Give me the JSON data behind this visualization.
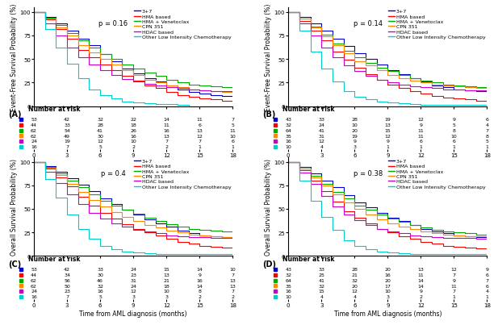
{
  "panels": [
    {
      "label": "A",
      "ylabel": "Event-Free Survival Probability (%)",
      "pvalue": "p = 0.16"
    },
    {
      "label": "B",
      "ylabel": "Event-Free Survival Probability (%)",
      "pvalue": "p = 0.14"
    },
    {
      "label": "C",
      "ylabel": "Overall Survival Probability (%)",
      "pvalue": "p = 0.4"
    },
    {
      "label": "D",
      "ylabel": "Overall Survival Probability (%)",
      "pvalue": "p = 0.38"
    }
  ],
  "legend_labels": [
    "3+7",
    "HMA based",
    "HMA + Venetoclax",
    "CPN 351",
    "HDAC based",
    "Other Low Intensity Chemotherapy"
  ],
  "line_colors": [
    "#0000cc",
    "#ff0000",
    "#00aa00",
    "#ff8800",
    "#cc00cc",
    "#00cccc"
  ],
  "xlabel": "Time from AML diagnosis (months)",
  "xmax": 18,
  "xticks": [
    0,
    3,
    6,
    9,
    12,
    15,
    18
  ],
  "curves_A": [
    {
      "x": [
        0,
        1,
        2,
        3,
        4,
        5,
        6,
        7,
        8,
        9,
        10,
        11,
        12,
        13,
        14,
        15,
        16,
        17,
        18
      ],
      "y": [
        100,
        95,
        88,
        80,
        72,
        65,
        55,
        48,
        40,
        35,
        30,
        26,
        22,
        18,
        15,
        13,
        12,
        11,
        10
      ]
    },
    {
      "x": [
        0,
        1,
        2,
        3,
        4,
        5,
        6,
        7,
        8,
        9,
        10,
        11,
        12,
        13,
        14,
        15,
        16,
        17,
        18
      ],
      "y": [
        100,
        92,
        82,
        72,
        60,
        52,
        44,
        38,
        32,
        27,
        22,
        19,
        15,
        12,
        10,
        8,
        7,
        6,
        5
      ]
    },
    {
      "x": [
        0,
        1,
        2,
        3,
        4,
        5,
        6,
        7,
        8,
        9,
        10,
        11,
        12,
        13,
        14,
        15,
        16,
        17,
        18
      ],
      "y": [
        100,
        94,
        86,
        78,
        70,
        62,
        55,
        50,
        44,
        40,
        36,
        32,
        28,
        25,
        23,
        22,
        21,
        20,
        20
      ]
    },
    {
      "x": [
        0,
        1,
        2,
        3,
        4,
        5,
        6,
        7,
        8,
        9,
        10,
        11,
        12,
        13,
        14,
        15,
        16,
        17,
        18
      ],
      "y": [
        100,
        93,
        84,
        75,
        65,
        57,
        50,
        44,
        38,
        33,
        28,
        25,
        22,
        20,
        18,
        17,
        16,
        15,
        14
      ]
    },
    {
      "x": [
        0,
        1,
        2,
        3,
        4,
        5,
        6,
        7,
        8,
        9,
        10,
        11,
        12,
        13,
        14,
        15,
        16,
        17,
        18
      ],
      "y": [
        100,
        88,
        75,
        62,
        52,
        44,
        38,
        33,
        29,
        26,
        24,
        22,
        20,
        19,
        18,
        17,
        16,
        16,
        16
      ]
    },
    {
      "x": [
        0,
        1,
        2,
        3,
        4,
        5,
        6,
        7,
        8,
        9,
        10,
        11,
        12,
        13,
        14
      ],
      "y": [
        100,
        82,
        62,
        45,
        30,
        18,
        12,
        8,
        5,
        4,
        3,
        2,
        2,
        1,
        0
      ]
    }
  ],
  "curves_B": [
    {
      "x": [
        0,
        1,
        2,
        3,
        4,
        5,
        6,
        7,
        8,
        9,
        10,
        11,
        12,
        13,
        14,
        15,
        16,
        17,
        18
      ],
      "y": [
        100,
        95,
        88,
        80,
        72,
        64,
        56,
        50,
        44,
        38,
        34,
        30,
        26,
        22,
        20,
        18,
        17,
        16,
        15
      ]
    },
    {
      "x": [
        0,
        1,
        2,
        3,
        4,
        5,
        6,
        7,
        8,
        9,
        10,
        11,
        12,
        13,
        14,
        15,
        16,
        17,
        18
      ],
      "y": [
        100,
        91,
        80,
        70,
        58,
        49,
        41,
        34,
        28,
        23,
        19,
        16,
        13,
        11,
        9,
        8,
        7,
        6,
        5
      ]
    },
    {
      "x": [
        0,
        1,
        2,
        3,
        4,
        5,
        6,
        7,
        8,
        9,
        10,
        11,
        12,
        13,
        14,
        15,
        16,
        17,
        18
      ],
      "y": [
        100,
        93,
        85,
        76,
        67,
        59,
        52,
        46,
        41,
        37,
        33,
        30,
        27,
        25,
        23,
        22,
        21,
        20,
        20
      ]
    },
    {
      "x": [
        0,
        1,
        2,
        3,
        4,
        5,
        6,
        7,
        8,
        9,
        10,
        11,
        12,
        13,
        14,
        15,
        16,
        17,
        18
      ],
      "y": [
        100,
        93,
        84,
        74,
        65,
        56,
        48,
        43,
        38,
        33,
        30,
        27,
        25,
        23,
        22,
        21,
        20,
        19,
        19
      ]
    },
    {
      "x": [
        0,
        1,
        2,
        3,
        4,
        5,
        6,
        7,
        8,
        9,
        10,
        11,
        12,
        13,
        14,
        15,
        16,
        17,
        18
      ],
      "y": [
        100,
        88,
        75,
        62,
        52,
        43,
        37,
        32,
        28,
        25,
        23,
        21,
        20,
        19,
        18,
        18,
        17,
        17,
        17
      ]
    },
    {
      "x": [
        0,
        1,
        2,
        3,
        4,
        5,
        6,
        7,
        8,
        9,
        10,
        11,
        12,
        13,
        14,
        15,
        16,
        17,
        18
      ],
      "y": [
        100,
        80,
        58,
        40,
        26,
        16,
        10,
        7,
        5,
        4,
        3,
        2,
        1,
        1,
        1,
        1,
        1,
        1,
        1
      ]
    }
  ],
  "curves_C": [
    {
      "x": [
        0,
        1,
        2,
        3,
        4,
        5,
        6,
        7,
        8,
        9,
        10,
        11,
        12,
        13,
        14,
        15,
        16,
        17,
        18
      ],
      "y": [
        100,
        96,
        90,
        83,
        76,
        69,
        61,
        55,
        49,
        44,
        39,
        35,
        31,
        27,
        24,
        22,
        21,
        20,
        19
      ]
    },
    {
      "x": [
        0,
        1,
        2,
        3,
        4,
        5,
        6,
        7,
        8,
        9,
        10,
        11,
        12,
        13,
        14,
        15,
        16,
        17,
        18
      ],
      "y": [
        100,
        93,
        84,
        74,
        63,
        54,
        46,
        40,
        34,
        29,
        25,
        22,
        18,
        15,
        13,
        11,
        10,
        9,
        8
      ]
    },
    {
      "x": [
        0,
        1,
        2,
        3,
        4,
        5,
        6,
        7,
        8,
        9,
        10,
        11,
        12,
        13,
        14,
        15,
        16,
        17,
        18
      ],
      "y": [
        100,
        95,
        88,
        80,
        73,
        66,
        59,
        54,
        49,
        45,
        41,
        37,
        34,
        31,
        29,
        28,
        27,
        26,
        26
      ]
    },
    {
      "x": [
        0,
        1,
        2,
        3,
        4,
        5,
        6,
        7,
        8,
        9,
        10,
        11,
        12,
        13,
        14,
        15,
        16,
        17,
        18
      ],
      "y": [
        100,
        94,
        86,
        77,
        68,
        60,
        53,
        47,
        42,
        37,
        33,
        30,
        27,
        25,
        23,
        22,
        21,
        20,
        20
      ]
    },
    {
      "x": [
        0,
        1,
        2,
        3,
        4,
        5,
        6,
        7,
        8,
        9,
        10,
        11,
        12,
        13,
        14,
        15,
        16,
        17,
        18
      ],
      "y": [
        100,
        90,
        78,
        66,
        55,
        46,
        40,
        35,
        31,
        28,
        26,
        24,
        22,
        21,
        20,
        20,
        19,
        19,
        19
      ]
    },
    {
      "x": [
        0,
        1,
        2,
        3,
        4,
        5,
        6,
        7,
        8,
        9,
        10,
        11,
        12,
        13,
        14,
        15,
        16,
        17,
        18
      ],
      "y": [
        100,
        82,
        62,
        44,
        29,
        18,
        11,
        7,
        5,
        4,
        3,
        2,
        2,
        2,
        2,
        2,
        2,
        2,
        2
      ]
    }
  ],
  "curves_D": [
    {
      "x": [
        0,
        1,
        2,
        3,
        4,
        5,
        6,
        7,
        8,
        9,
        10,
        11,
        12,
        13,
        14,
        15,
        16,
        17,
        18
      ],
      "y": [
        100,
        95,
        88,
        80,
        73,
        65,
        57,
        52,
        46,
        41,
        37,
        33,
        29,
        26,
        24,
        22,
        21,
        20,
        19
      ]
    },
    {
      "x": [
        0,
        1,
        2,
        3,
        4,
        5,
        6,
        7,
        8,
        9,
        10,
        11,
        12,
        13,
        14,
        15,
        16,
        17,
        18
      ],
      "y": [
        100,
        91,
        80,
        69,
        58,
        48,
        41,
        35,
        29,
        25,
        21,
        18,
        15,
        13,
        11,
        10,
        9,
        8,
        8
      ]
    },
    {
      "x": [
        0,
        1,
        2,
        3,
        4,
        5,
        6,
        7,
        8,
        9,
        10,
        11,
        12,
        13,
        14,
        15,
        16,
        17,
        18
      ],
      "y": [
        100,
        93,
        85,
        77,
        68,
        61,
        54,
        49,
        44,
        40,
        36,
        33,
        30,
        28,
        26,
        25,
        24,
        23,
        23
      ]
    },
    {
      "x": [
        0,
        1,
        2,
        3,
        4,
        5,
        6,
        7,
        8,
        9,
        10,
        11,
        12,
        13,
        14,
        15,
        16,
        17,
        18
      ],
      "y": [
        100,
        93,
        84,
        75,
        66,
        57,
        50,
        44,
        39,
        35,
        31,
        29,
        26,
        24,
        23,
        22,
        21,
        21,
        21
      ]
    },
    {
      "x": [
        0,
        1,
        2,
        3,
        4,
        5,
        6,
        7,
        8,
        9,
        10,
        11,
        12,
        13,
        14,
        15,
        16,
        17,
        18
      ],
      "y": [
        100,
        89,
        77,
        64,
        53,
        44,
        38,
        33,
        29,
        26,
        24,
        22,
        21,
        20,
        19,
        19,
        19,
        18,
        18
      ]
    },
    {
      "x": [
        0,
        1,
        2,
        3,
        4,
        5,
        6,
        7,
        8,
        9,
        10,
        11,
        12,
        13,
        14,
        15,
        16,
        17,
        18
      ],
      "y": [
        100,
        80,
        59,
        42,
        28,
        17,
        11,
        7,
        5,
        4,
        3,
        2,
        2,
        2,
        2,
        2,
        2,
        2,
        2
      ]
    }
  ],
  "risk_A": {
    "t0": [
      53,
      44,
      62,
      62,
      24,
      16
    ],
    "t3": [
      42,
      33,
      54,
      49,
      19,
      7
    ],
    "t6": [
      32,
      28,
      41,
      30,
      12,
      5
    ],
    "t9": [
      22,
      18,
      26,
      16,
      10,
      2
    ],
    "t12": [
      14,
      11,
      16,
      13,
      7,
      2
    ],
    "t15": [
      11,
      6,
      13,
      12,
      7,
      1
    ],
    "t18": [
      7,
      5,
      11,
      10,
      6,
      1
    ]
  },
  "risk_B": {
    "t0": [
      43,
      32,
      64,
      35,
      16,
      10
    ],
    "t3": [
      33,
      24,
      41,
      31,
      12,
      4
    ],
    "t6": [
      28,
      10,
      20,
      19,
      9,
      3
    ],
    "t9": [
      19,
      13,
      15,
      12,
      9,
      1
    ],
    "t12": [
      12,
      9,
      11,
      11,
      6,
      1
    ],
    "t15": [
      9,
      5,
      8,
      10,
      6,
      1
    ],
    "t18": [
      6,
      4,
      7,
      8,
      5,
      1
    ]
  },
  "risk_C": {
    "t0": [
      53,
      44,
      62,
      62,
      24,
      16
    ],
    "t3": [
      42,
      34,
      56,
      50,
      23,
      7
    ],
    "t6": [
      33,
      30,
      46,
      32,
      16,
      5
    ],
    "t9": [
      24,
      23,
      31,
      24,
      12,
      3
    ],
    "t12": [
      15,
      13,
      21,
      18,
      10,
      3
    ],
    "t15": [
      14,
      9,
      16,
      14,
      8,
      2
    ],
    "t18": [
      10,
      7,
      13,
      13,
      7,
      2
    ]
  },
  "risk_D": {
    "t0": [
      43,
      32,
      64,
      35,
      16,
      10
    ],
    "t3": [
      33,
      25,
      41,
      32,
      15,
      4
    ],
    "t6": [
      28,
      21,
      32,
      20,
      12,
      4
    ],
    "t9": [
      20,
      16,
      20,
      17,
      10,
      3
    ],
    "t12": [
      13,
      11,
      14,
      14,
      9,
      2
    ],
    "t15": [
      12,
      7,
      9,
      11,
      7,
      1
    ],
    "t18": [
      9,
      6,
      7,
      6,
      4,
      1
    ]
  },
  "bg_color": "#ffffff",
  "font_size_axis": 5.5,
  "font_size_tick": 5,
  "font_size_legend": 4.5,
  "font_size_risk": 4.5,
  "font_size_pval": 6,
  "font_size_panel_label": 7,
  "font_size_risk_title": 5.5
}
